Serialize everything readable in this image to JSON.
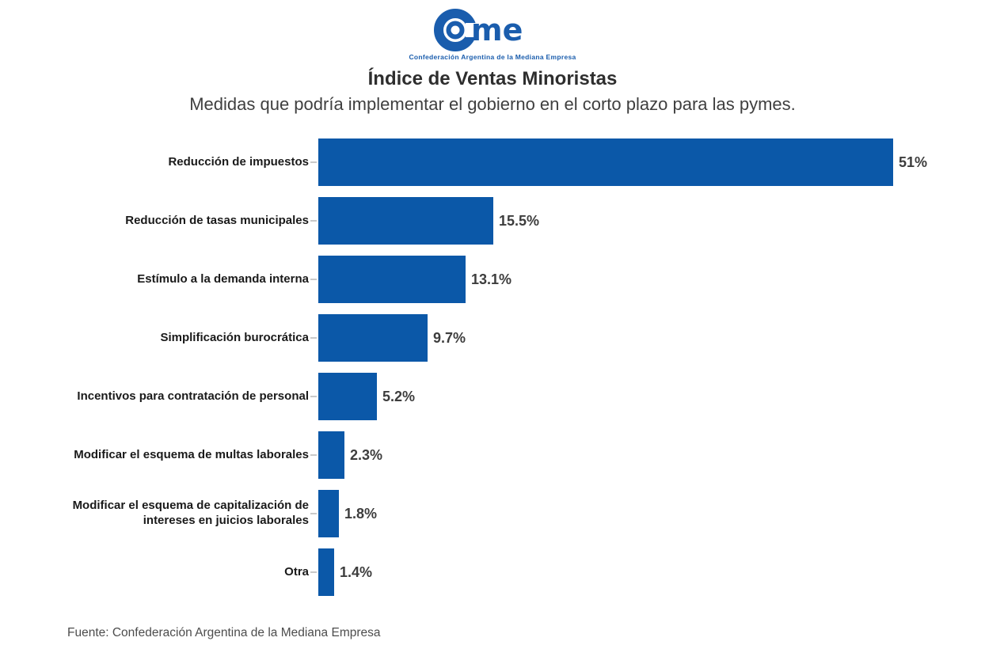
{
  "logo": {
    "name": "Came",
    "tagline": "Confederación Argentina de la Mediana Empresa",
    "color": "#1A5DAD"
  },
  "header": {
    "title": "Índice de Ventas Minoristas",
    "subtitle": "Medidas que podría implementar el gobierno en el corto plazo para las pymes."
  },
  "chart_data": {
    "type": "bar",
    "orientation": "horizontal",
    "title": "Índice de Ventas Minoristas",
    "subtitle": "Medidas que podría implementar el gobierno en el corto plazo para las pymes.",
    "categories": [
      "Reducción de impuestos",
      "Reducción de tasas municipales",
      "Estímulo a la demanda interna",
      "Simplificación burocrática",
      "Incentivos para contratación de personal",
      "Modificar el esquema de multas laborales",
      "Modificar el esquema de capitalización de intereses en juicios laborales",
      "Otra"
    ],
    "values": [
      51,
      15.5,
      13.1,
      9.7,
      5.2,
      2.3,
      1.8,
      1.4
    ],
    "value_labels": [
      "51%",
      "15.5%",
      "13.1%",
      "9.7%",
      "5.2%",
      "2.3%",
      "1.8%",
      "1.4%"
    ],
    "bar_color": "#0B58A8",
    "xlabel": "",
    "ylabel": "",
    "xlim": [
      0,
      51
    ],
    "grid": false,
    "legend": false,
    "value_label_position": "right-of-bar"
  },
  "footer": {
    "source": "Fuente: Confederación Argentina de la Mediana Empresa"
  }
}
